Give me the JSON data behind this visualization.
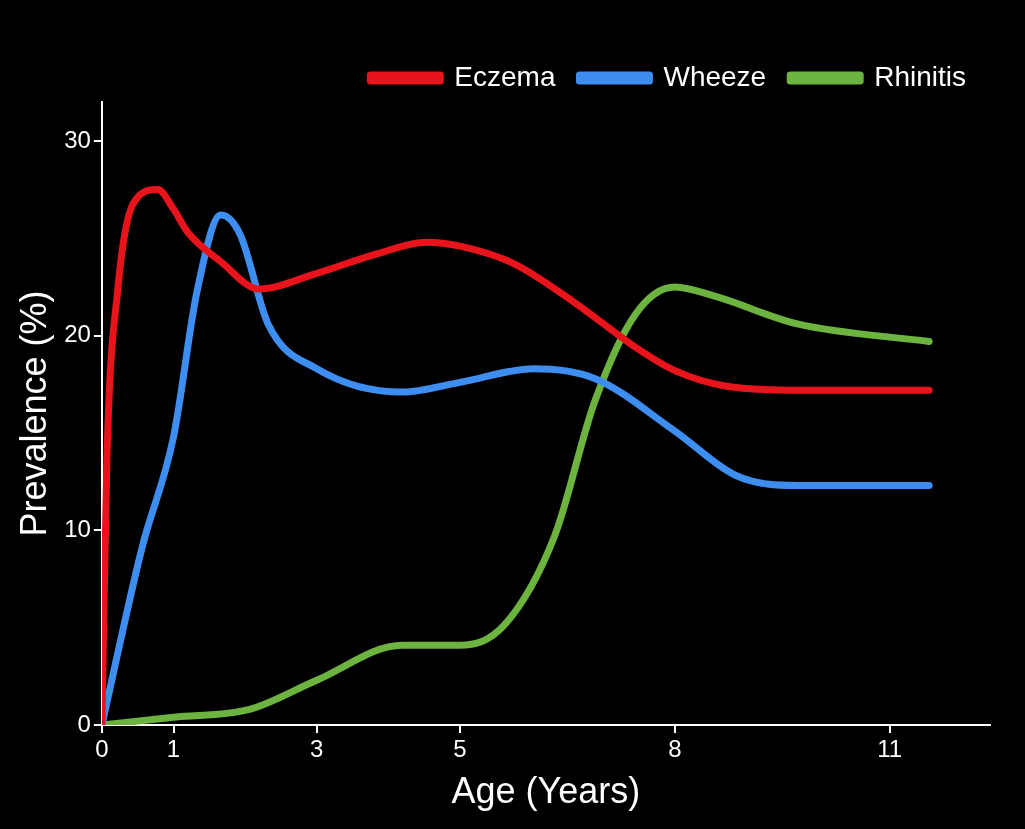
{
  "chart_data": {
    "type": "line",
    "xlabel": "Age (Years)",
    "ylabel": "Prevalence (%)",
    "xlim": [
      0,
      12.4
    ],
    "xticks": [
      0,
      1,
      3,
      5,
      8,
      11
    ],
    "ylim": [
      0,
      32
    ],
    "yticks": [
      0,
      10,
      20,
      30
    ],
    "grid": false,
    "legend": "top right",
    "marker": "none",
    "line_style": "solid",
    "series": [
      {
        "name": "Eczema",
        "color": "#e8141c",
        "x": [
          0,
          0.07,
          0.22,
          0.44,
          0.78,
          1,
          1.2,
          1.66,
          2.19,
          3,
          3.84,
          4.53,
          5,
          5.75,
          6.6,
          7.45,
          8,
          8.72,
          9.71,
          11.55
        ],
        "values": [
          0,
          13.7,
          22.3,
          26.8,
          27.5,
          26.5,
          25.3,
          23.8,
          22.4,
          23.2,
          24.2,
          24.8,
          24.6,
          23.7,
          21.7,
          19.4,
          18.2,
          17.4,
          17.2,
          17.2
        ]
      },
      {
        "name": "Wheeze",
        "color": "#3d8ef0",
        "x": [
          0,
          0.56,
          1,
          1.33,
          1.66,
          1.93,
          2.32,
          3,
          4.19,
          5,
          6.03,
          6.88,
          8,
          8.86,
          9.71,
          11.55
        ],
        "values": [
          0,
          9.1,
          14.8,
          22.3,
          26.2,
          25.2,
          20.6,
          18.3,
          17.1,
          17.6,
          18.3,
          17.8,
          15.1,
          12.8,
          12.3,
          12.3
        ]
      },
      {
        "name": "Rhinitis",
        "color": "#6cb33f",
        "x": [
          0,
          1,
          2.06,
          3,
          4.19,
          5,
          5.61,
          6.32,
          6.88,
          7.45,
          8,
          8.58,
          9.71,
          11.55
        ],
        "values": [
          0,
          0.4,
          0.8,
          2.3,
          4.1,
          4.1,
          5.1,
          9.7,
          16.6,
          21.1,
          22.5,
          22.0,
          20.6,
          19.7
        ]
      }
    ]
  }
}
